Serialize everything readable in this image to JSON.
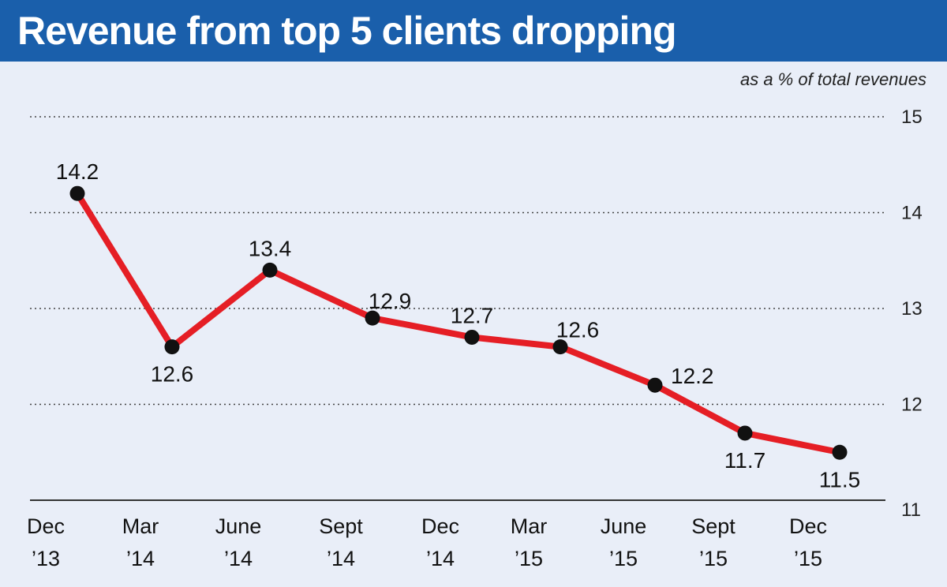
{
  "header": {
    "title": "Revenue from top 5 clients dropping",
    "subtitle": "as a % of total revenues"
  },
  "colors": {
    "title_bar": "#1a5fab",
    "background": "#e9eef8",
    "line": "#e51e25",
    "marker": "#111111"
  },
  "chart_data": {
    "type": "line",
    "title": "Revenue from top 5 clients dropping",
    "subtitle": "as a % of total revenues",
    "categories": [
      [
        "Dec",
        "’13"
      ],
      [
        "Mar",
        "’14"
      ],
      [
        "June",
        "’14"
      ],
      [
        "Sept",
        "’14"
      ],
      [
        "Dec",
        "’14"
      ],
      [
        "Mar",
        "’15"
      ],
      [
        "June",
        "’15"
      ],
      [
        "Sept",
        "’15"
      ],
      [
        "Dec",
        "’15"
      ]
    ],
    "series": [
      {
        "values": [
          14.2,
          12.6,
          13.4,
          12.9,
          12.7,
          12.6,
          12.2,
          11.7,
          11.5
        ]
      }
    ],
    "data_labels": [
      "14.2",
      "12.6",
      "13.4",
      "12.9",
      "12.7",
      "12.6",
      "12.2",
      "11.7",
      "11.5"
    ],
    "label_positions": [
      "above",
      "below",
      "above",
      "above-right",
      "above",
      "above-right",
      "right",
      "below",
      "below"
    ],
    "ylim": [
      11,
      15
    ],
    "yticks": [
      "11",
      "12",
      "13",
      "14",
      "15"
    ],
    "y_axis_side": "right",
    "grid": "dotted horizontal"
  }
}
